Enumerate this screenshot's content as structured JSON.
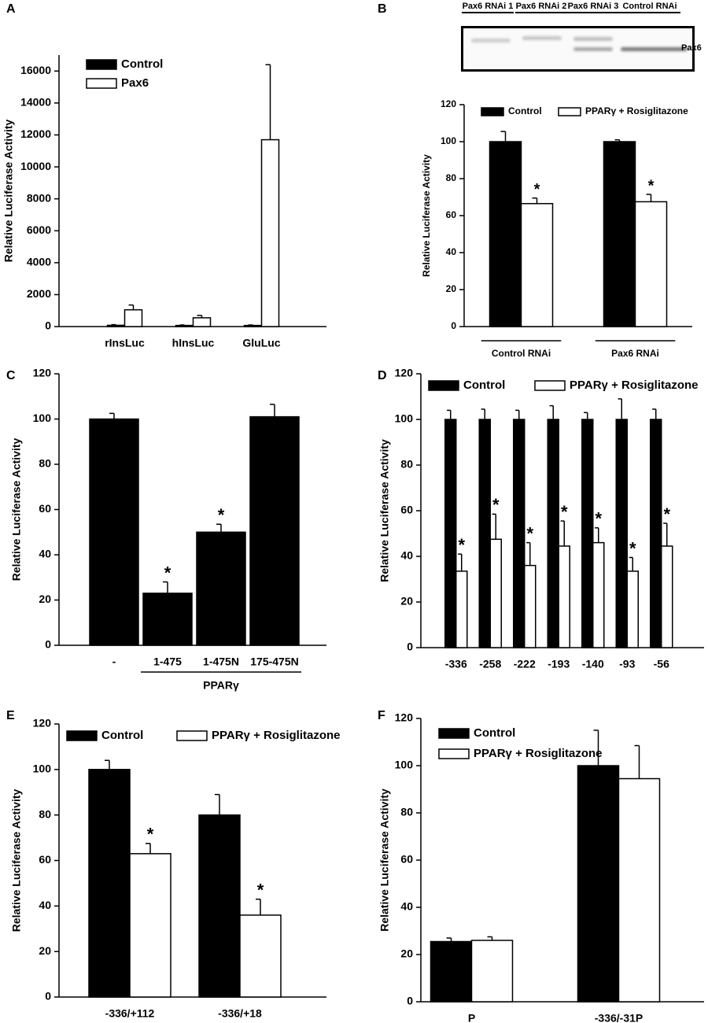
{
  "chart_data": [
    {
      "type": "bar",
      "panel": "A",
      "ylabel": "Relative Luciferase Activity",
      "categories": [
        "rInsLuc",
        "hInsLuc",
        "GluLuc"
      ],
      "series": [
        {
          "name": "Control",
          "color": "#000000",
          "values": [
            80,
            70,
            70
          ],
          "errors": [
            40,
            30,
            30
          ]
        },
        {
          "name": "Pax6",
          "color": "#ffffff",
          "values": [
            1050,
            550,
            11700
          ],
          "errors": [
            300,
            150,
            4700
          ]
        }
      ],
      "ylim": [
        0,
        17000
      ],
      "yticks": [
        0,
        2000,
        4000,
        6000,
        8000,
        10000,
        12000,
        14000,
        16000
      ]
    },
    {
      "type": "bar",
      "panel": "B",
      "ylabel": "Relative Luciferase Activity",
      "blot": {
        "lanes": [
          "Pax6 RNAi 1",
          "Pax6 RNAi 2",
          "Pax6 RNAi 3",
          "Control RNAi"
        ],
        "band_label": "Pax6"
      },
      "categories": [
        "Control RNAi",
        "Pax6 RNAi"
      ],
      "series": [
        {
          "name": "Control",
          "color": "#000000",
          "values": [
            100,
            100
          ],
          "errors": [
            5.5,
            1
          ],
          "annotations": [
            null,
            null
          ]
        },
        {
          "name": "PPARγ + Rosiglitazone",
          "color": "#ffffff",
          "values": [
            66.5,
            67.5
          ],
          "errors": [
            3,
            4
          ],
          "annotations": [
            "*",
            "*"
          ]
        }
      ],
      "ylim": [
        0,
        120
      ],
      "yticks": [
        0,
        20,
        40,
        60,
        80,
        100,
        120
      ]
    },
    {
      "type": "bar",
      "panel": "C",
      "ylabel": "Relative Luciferase Activity",
      "xlabel": "PPARγ",
      "categories": [
        "-",
        "1-475",
        "1-475N",
        "175-475N"
      ],
      "values": [
        100,
        23,
        50,
        101
      ],
      "errors": [
        2.5,
        5,
        3.5,
        5.5
      ],
      "annotations": [
        null,
        "*",
        "*",
        null
      ],
      "color": "#000000",
      "ylim": [
        0,
        120
      ],
      "yticks": [
        0,
        20,
        40,
        60,
        80,
        100,
        120
      ]
    },
    {
      "type": "bar",
      "panel": "D",
      "ylabel": "Relative Luciferase Activity",
      "categories": [
        "-336",
        "-258",
        "-222",
        "-193",
        "-140",
        "-93",
        "-56"
      ],
      "series": [
        {
          "name": "Control",
          "color": "#000000",
          "values": [
            100,
            100,
            100,
            100,
            100,
            100,
            100
          ],
          "errors": [
            4,
            4.5,
            4,
            6,
            3,
            9,
            4.5
          ],
          "annotations": [
            null,
            null,
            null,
            null,
            null,
            null,
            null
          ]
        },
        {
          "name": "PPARγ + Rosiglitazone",
          "color": "#ffffff",
          "values": [
            33.5,
            47.5,
            36,
            44.5,
            46,
            33.5,
            44.5
          ],
          "errors": [
            7.5,
            11,
            10,
            11,
            6.5,
            6,
            10
          ],
          "annotations": [
            "*",
            "*",
            "*",
            "*",
            "*",
            "*",
            "*"
          ]
        }
      ],
      "ylim": [
        0,
        120
      ],
      "yticks": [
        0,
        20,
        40,
        60,
        80,
        100,
        120
      ]
    },
    {
      "type": "bar",
      "panel": "E",
      "ylabel": "Relative Luciferase Activity",
      "categories": [
        "-336/+112",
        "-336/+18"
      ],
      "series": [
        {
          "name": "Control",
          "color": "#000000",
          "values": [
            100,
            80
          ],
          "errors": [
            4,
            9
          ],
          "annotations": [
            null,
            null
          ]
        },
        {
          "name": "PPARγ + Rosiglitazone",
          "color": "#ffffff",
          "values": [
            63,
            36
          ],
          "errors": [
            4.5,
            7
          ],
          "annotations": [
            "*",
            "*"
          ]
        }
      ],
      "ylim": [
        0,
        120
      ],
      "yticks": [
        0,
        20,
        40,
        60,
        80,
        100,
        120
      ]
    },
    {
      "type": "bar",
      "panel": "F",
      "ylabel": "Relative Luciferase Activity",
      "categories": [
        "P",
        "-336/-31P"
      ],
      "series": [
        {
          "name": "Control",
          "color": "#000000",
          "values": [
            25.5,
            100
          ],
          "errors": [
            1.5,
            15
          ]
        },
        {
          "name": "PPARγ + Rosiglitazone",
          "color": "#ffffff",
          "values": [
            26,
            94.5
          ],
          "errors": [
            1.5,
            14
          ]
        }
      ],
      "ylim": [
        0,
        120
      ],
      "yticks": [
        0,
        20,
        40,
        60,
        80,
        100,
        120
      ]
    }
  ]
}
